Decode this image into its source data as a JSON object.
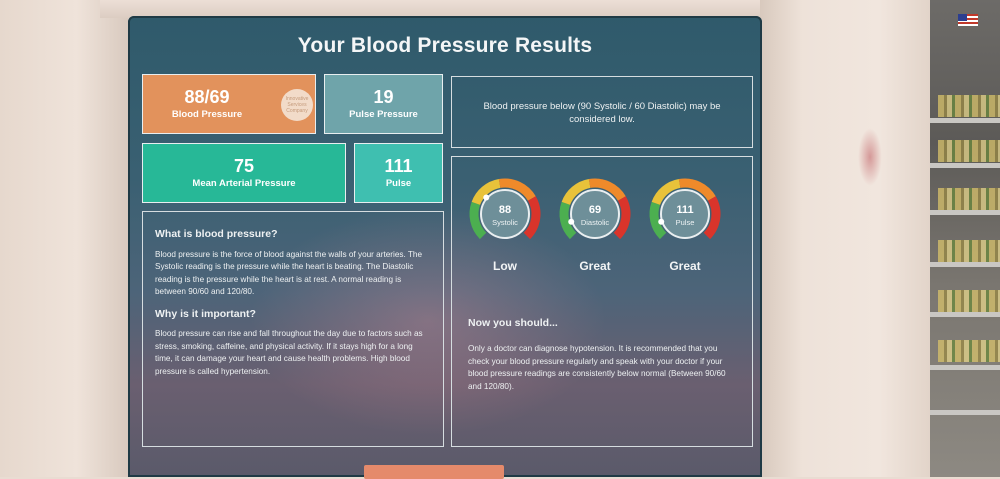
{
  "screen": {
    "title": "Your Blood Pressure Results"
  },
  "tiles": {
    "blood_pressure": {
      "value": "88/69",
      "label": "Blood Pressure",
      "badge_text": "Innovative Services Company"
    },
    "pulse_pressure": {
      "value": "19",
      "label": "Pulse Pressure"
    },
    "mean_arterial": {
      "value": "75",
      "label": "Mean Arterial Pressure"
    },
    "pulse": {
      "value": "111",
      "label": "Pulse"
    }
  },
  "note": "Blood pressure below (90 Systolic / 60 Diastolic) may be considered low.",
  "info": {
    "h1": "What is blood pressure?",
    "p1": "Blood pressure is the force of blood against the walls of your arteries. The Systolic reading is the pressure while the heart is beating. The Diastolic reading is the pressure while the heart is at rest. A normal reading is between 90/60 and 120/80.",
    "h2": "Why is it important?",
    "p2": "Blood pressure can rise and fall throughout the day due to factors such as stress, smoking, caffeine, and physical activity. If it stays high for a long time, it can damage your heart and cause health problems. High blood pressure is called hypertension."
  },
  "gauges": [
    {
      "value": "88",
      "label": "Systolic",
      "status": "Low",
      "level": 0.32
    },
    {
      "value": "69",
      "label": "Diastolic",
      "status": "Great",
      "level": 0.1
    },
    {
      "value": "111",
      "label": "Pulse",
      "status": "Great",
      "level": 0.1
    }
  ],
  "should": {
    "heading": "Now you should...",
    "text": "Only a doctor can diagnose hypotension. It is recommended that you check your blood pressure regularly and speak with your doctor if your blood pressure readings are consistently below normal (Between 90/60 and 120/80)."
  },
  "colors": {
    "tile_bp": "#e2925c",
    "tile_pp": "#6fa4aa",
    "tile_map": "#27b897",
    "tile_pulse": "#3fbfb0",
    "gauge_green": "#4caf50",
    "gauge_yellow": "#e8c23a",
    "gauge_orange": "#ef8a2a",
    "gauge_red": "#d9342b"
  }
}
